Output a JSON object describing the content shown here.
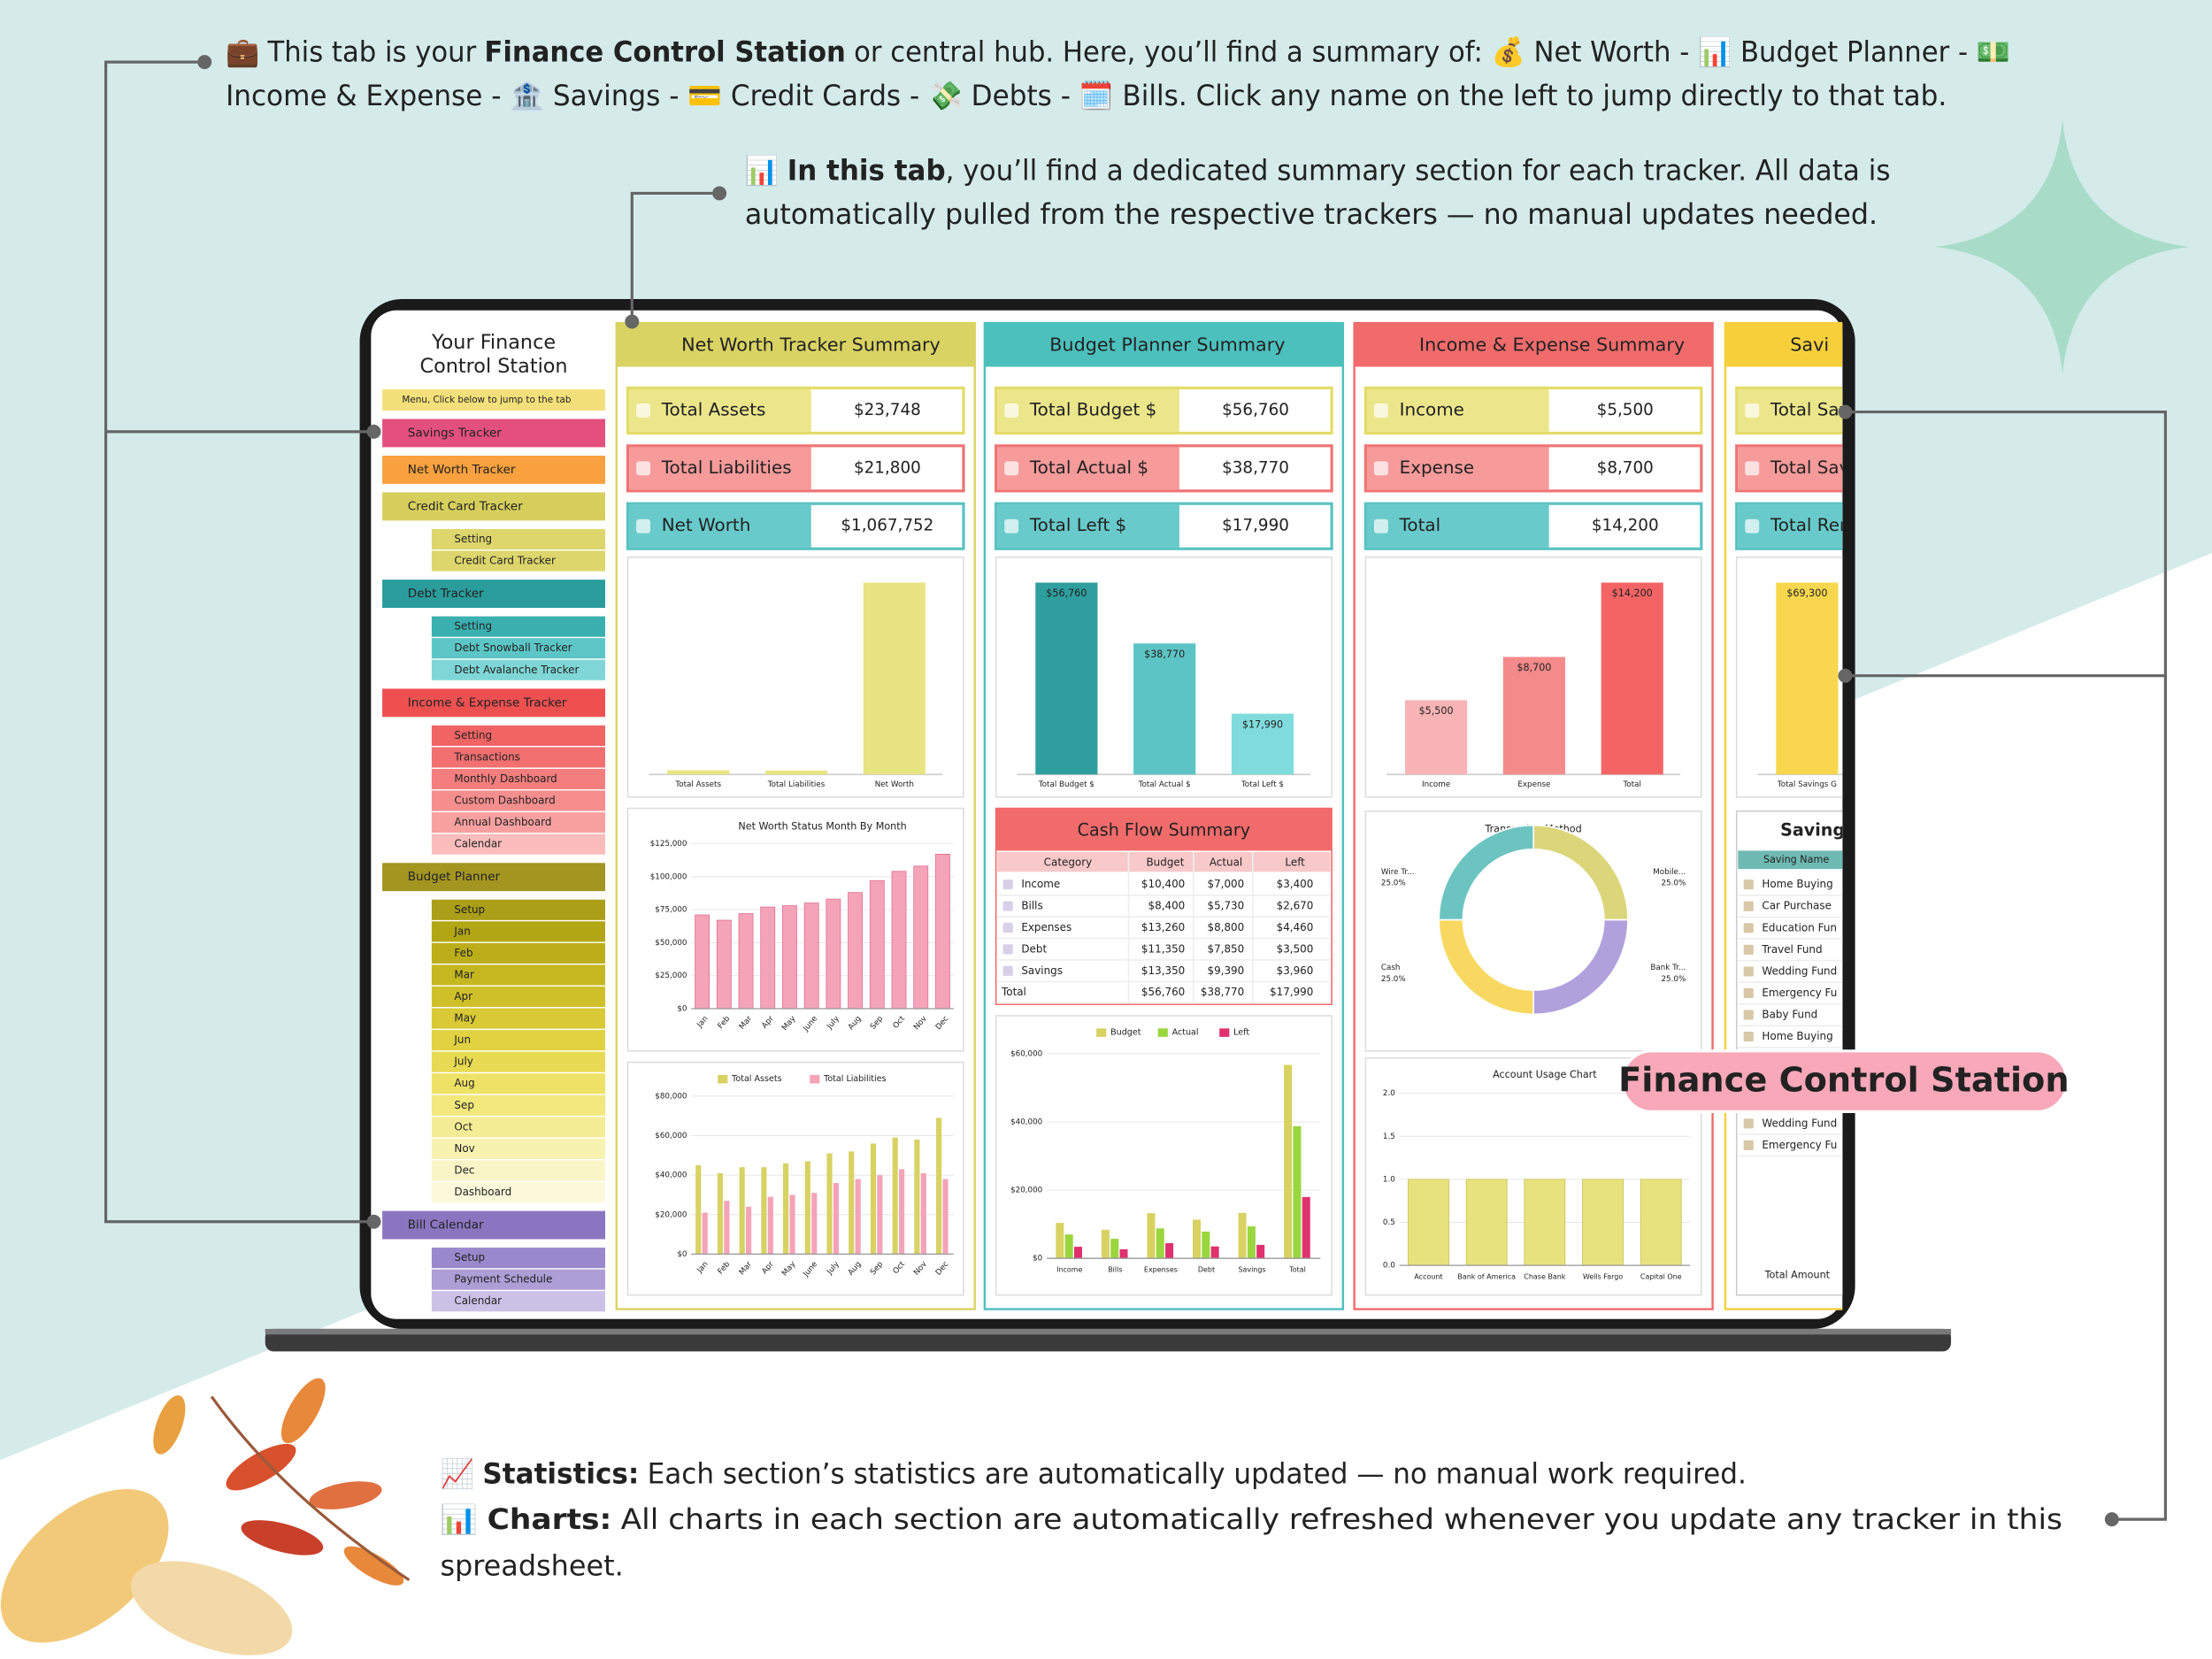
{
  "callouts": {
    "hub": {
      "icon": "💼",
      "pre": "This tab is your",
      "bold": "Finance Control Station",
      "post": "or central hub. Here, you’ll find a summary of: 💰 Net Worth - 📊 Budget Planner - 💵",
      "line2": "Income & Expense - 🏦 Savings - 💳 Credit Cards - 💸 Debts - 🗓️ Bills. Click any name on the left to jump directly to that tab."
    },
    "tab": {
      "icon": "📊",
      "bold": "In this tab",
      "post": ", you’ll find a dedicated summary section for each tracker. All data is",
      "line2": "automatically pulled from the respective trackers — no manual updates needed."
    },
    "statistics": {
      "icon": "📈",
      "bold": "Statistics:",
      "post": "Each section’s statistics are automatically updated — no manual work required."
    },
    "charts": {
      "icon": "📊",
      "bold": "Charts:",
      "post": "All charts in each section are automatically refreshed whenever you update any tracker in this",
      "line2": "spreadsheet."
    },
    "badge": "Finance Control Station"
  },
  "sidebar": {
    "title_line1": "Your Finance",
    "title_line2": "Control Station",
    "note": "Menu, Click below to jump to the tab",
    "items": [
      {
        "label": "Savings Tracker",
        "color": "#e4507e"
      },
      {
        "label": "Net Worth Tracker",
        "color": "#f8a13e"
      },
      {
        "label": "Credit Card Tracker",
        "color": "#d6cf5c",
        "children": [
          {
            "label": "Setting",
            "color": "#ddd66c"
          },
          {
            "label": "Credit Card Tracker",
            "color": "#ddd66c"
          }
        ]
      },
      {
        "label": "Debt Tracker",
        "color": "#2a9c9c",
        "children": [
          {
            "label": "Setting",
            "color": "#3bb0b0"
          },
          {
            "label": "Debt Snowball Tracker",
            "color": "#5cc6c6"
          },
          {
            "label": "Debt Avalanche Tracker",
            "color": "#7fd6d6"
          }
        ]
      },
      {
        "label": "Income & Expense Tracker",
        "color": "#ee5050",
        "children": [
          {
            "label": "Setting",
            "color": "#f16464"
          },
          {
            "label": "Transactions",
            "color": "#f27070"
          },
          {
            "label": "Monthly Dashboard",
            "color": "#f47e7e"
          },
          {
            "label": "Custom Dashboard",
            "color": "#f68e8e"
          },
          {
            "label": "Annual Dashboard",
            "color": "#f8a0a0"
          },
          {
            "label": "Calendar",
            "color": "#fbbcbc"
          }
        ]
      },
      {
        "label": "Budget Planner",
        "color": "#a39620",
        "children": [
          {
            "label": "Setup",
            "color": "#ab9e18"
          },
          {
            "label": "Jan",
            "color": "#b3a614"
          },
          {
            "label": "Feb",
            "color": "#bcae18"
          },
          {
            "label": "Mar",
            "color": "#c5b71f"
          },
          {
            "label": "Apr",
            "color": "#cfc02a"
          },
          {
            "label": "May",
            "color": "#d8c935"
          },
          {
            "label": "Jun",
            "color": "#e1d241"
          },
          {
            "label": "July",
            "color": "#e8da52"
          },
          {
            "label": "Aug",
            "color": "#eee266"
          },
          {
            "label": "Sep",
            "color": "#f2e87c"
          },
          {
            "label": "Oct",
            "color": "#f5ed96"
          },
          {
            "label": "Nov",
            "color": "#f8f2b0"
          },
          {
            "label": "Dec",
            "color": "#faf5c6"
          },
          {
            "label": "Dashboard",
            "color": "#fcf8da"
          }
        ]
      },
      {
        "label": "Bill Calendar",
        "color": "#8a76c0",
        "children": [
          {
            "label": "Setup",
            "color": "#9a88cc"
          },
          {
            "label": "Payment Schedule",
            "color": "#ad9ed6"
          },
          {
            "label": "Calendar",
            "color": "#cbc1e6"
          }
        ]
      }
    ]
  },
  "panels": {
    "net_worth": {
      "title": "Net Worth Tracker Summary",
      "rows": [
        {
          "label": "Total Assets",
          "value": "$23,748"
        },
        {
          "label": "Total Liabilities",
          "value": "$21,800"
        },
        {
          "label": "Net Worth",
          "value": "$1,067,752"
        }
      ],
      "summary_chart": {
        "categories": [
          "Total Assets",
          "Total Liabilities",
          "Net Worth"
        ],
        "values": [
          23748,
          21800,
          1067752
        ],
        "colors": [
          "#e8e482",
          "#e8e482",
          "#e8e482"
        ]
      },
      "month_chart": {
        "title": "Net Worth Status Month By Month",
        "categories": [
          "Jan",
          "Feb",
          "Mar",
          "Apr",
          "May",
          "June",
          "July",
          "Aug",
          "Sep",
          "Oct",
          "Nov",
          "Dec"
        ],
        "values": [
          71000,
          67000,
          72000,
          77000,
          78000,
          80000,
          83000,
          88000,
          97000,
          104000,
          108000,
          117000
        ],
        "color": "#f4a3b8",
        "ylim": [
          0,
          125000
        ],
        "yticks": [
          {
            "value": 0,
            "label": "$0"
          },
          {
            "value": 25000,
            "label": "$25,000"
          },
          {
            "value": 50000,
            "label": "$50,000"
          },
          {
            "value": 75000,
            "label": "$75,000"
          },
          {
            "value": 100000,
            "label": "$100,000"
          },
          {
            "value": 125000,
            "label": "$125,000"
          }
        ]
      },
      "assets_chart": {
        "categories": [
          "Jan",
          "Feb",
          "Mar",
          "Apr",
          "May",
          "June",
          "July",
          "Aug",
          "Sep",
          "Oct",
          "Nov",
          "Dec"
        ],
        "series": [
          {
            "name": "Total Assets",
            "color": "#d8d263",
            "values": [
              45000,
              41000,
              44000,
              44000,
              46000,
              47000,
              51000,
              52000,
              56000,
              59000,
              58000,
              69000
            ]
          },
          {
            "name": "Total Liabilities",
            "color": "#f4a3b8",
            "values": [
              21000,
              27000,
              24000,
              29000,
              30000,
              31000,
              36000,
              38000,
              40000,
              43000,
              41000,
              38000
            ]
          }
        ],
        "ylim": [
          0,
          80000
        ],
        "yticks": [
          {
            "value": 0,
            "label": "$0"
          },
          {
            "value": 20000,
            "label": "$20,000"
          },
          {
            "value": 40000,
            "label": "$40,000"
          },
          {
            "value": 60000,
            "label": "$60,000"
          },
          {
            "value": 80000,
            "label": "$80,000"
          }
        ]
      }
    },
    "budget": {
      "title": "Budget Planner Summary",
      "rows": [
        {
          "label": "Total Budget $",
          "value": "$56,760"
        },
        {
          "label": "Total Actual $",
          "value": "$38,770"
        },
        {
          "label": "Total Left $",
          "value": "$17,990"
        }
      ],
      "summary_chart": {
        "categories": [
          "Total Budget $",
          "Total Actual $",
          "Total Left $"
        ],
        "values": [
          56760,
          38770,
          17990
        ],
        "value_labels": [
          "$56,760",
          "$38,770",
          "$17,990"
        ],
        "colors": [
          "#2e9e9e",
          "#5cc4c4",
          "#80dcdc"
        ]
      },
      "cash_flow": {
        "title": "Cash Flow Summary",
        "columns": [
          "Category",
          "Budget",
          "Actual",
          "Left"
        ],
        "rows": [
          [
            "Income",
            "$10,400",
            "$7,000",
            "$3,400"
          ],
          [
            "Bills",
            "$8,400",
            "$5,730",
            "$2,670"
          ],
          [
            "Expenses",
            "$13,260",
            "$8,800",
            "$4,460"
          ],
          [
            "Debt",
            "$11,350",
            "$7,850",
            "$3,500"
          ],
          [
            "Savings",
            "$13,350",
            "$9,390",
            "$3,960"
          ],
          [
            "Total",
            "$56,760",
            "$38,770",
            "$17,990"
          ]
        ]
      },
      "compare_chart": {
        "categories": [
          "Income",
          "Bills",
          "Expenses",
          "Debt",
          "Savings",
          "Total"
        ],
        "series": [
          {
            "name": "Budget",
            "color": "#d8d263",
            "values": [
              10400,
              8400,
              13260,
              11350,
              13350,
              56760
            ]
          },
          {
            "name": "Actual",
            "color": "#9ad63e",
            "values": [
              7000,
              5730,
              8800,
              7850,
              9390,
              38770
            ]
          },
          {
            "name": "Left",
            "color": "#e0306e",
            "values": [
              3400,
              2670,
              4460,
              3500,
              3960,
              17990
            ]
          }
        ],
        "ylim": [
          0,
          60000
        ],
        "yticks": [
          {
            "value": 0,
            "label": "$0"
          },
          {
            "value": 20000,
            "label": "$20,000"
          },
          {
            "value": 40000,
            "label": "$40,000"
          },
          {
            "value": 60000,
            "label": "$60,000"
          }
        ]
      }
    },
    "income": {
      "title": "Income & Expense Summary",
      "rows": [
        {
          "label": "Income",
          "value": "$5,500"
        },
        {
          "label": "Expense",
          "value": "$8,700"
        },
        {
          "label": "Total",
          "value": "$14,200"
        }
      ],
      "summary_chart": {
        "categories": [
          "Income",
          "Expense",
          "Total"
        ],
        "values": [
          5500,
          8700,
          14200
        ],
        "value_labels": [
          "$5,500",
          "$8,700",
          "$14,200"
        ],
        "colors": [
          "#f8b4b4",
          "#f58a8a",
          "#f46464"
        ]
      },
      "method_chart": {
        "title": "Transaction Method",
        "categories": [
          "Mobile...",
          "Bank Tr...",
          "Cash",
          "Wire Tr..."
        ],
        "values": [
          25,
          25,
          25,
          25
        ],
        "value_labels": [
          "25.0%",
          "25.0%",
          "25.0%",
          "25.0%"
        ],
        "colors": [
          "#dcd67a",
          "#b0a0dc",
          "#f8d860",
          "#6cc4c0"
        ]
      },
      "account_chart": {
        "title": "Account Usage Chart",
        "categories": [
          "Account",
          "Bank of America",
          "Chase Bank",
          "Wells Fargo",
          "Capital One"
        ],
        "values": [
          1,
          1,
          1,
          1,
          1
        ],
        "color": "#e8e27e",
        "ylim": [
          0,
          2
        ],
        "yticks": [
          {
            "value": 0,
            "label": "0.0"
          },
          {
            "value": 0.5,
            "label": "0.5"
          },
          {
            "value": 1,
            "label": "1.0"
          },
          {
            "value": 1.5,
            "label": "1.5"
          },
          {
            "value": 2,
            "label": "2.0"
          }
        ]
      }
    },
    "savings": {
      "title": "Savi",
      "rows": [
        {
          "label": "Total Sav"
        },
        {
          "label": "Total Sav"
        },
        {
          "label": "Total Rem"
        }
      ],
      "summary_chart": {
        "categories": [
          "Total Savings G"
        ],
        "values": [
          69300
        ],
        "value_labels": [
          "$69,300"
        ],
        "colors": [
          "#f8d74e"
        ]
      },
      "list_title": "Savings",
      "list_header": "Saving Name",
      "list": [
        "Home Buying",
        "Car Purchase",
        "Education Fun",
        "Travel Fund",
        "Wedding Fund",
        "Emergency Fu",
        "Baby Fund",
        "Home Buying",
        "Wedding Fund",
        "Emergency Fu"
      ],
      "footer": "Total Amount"
    }
  }
}
